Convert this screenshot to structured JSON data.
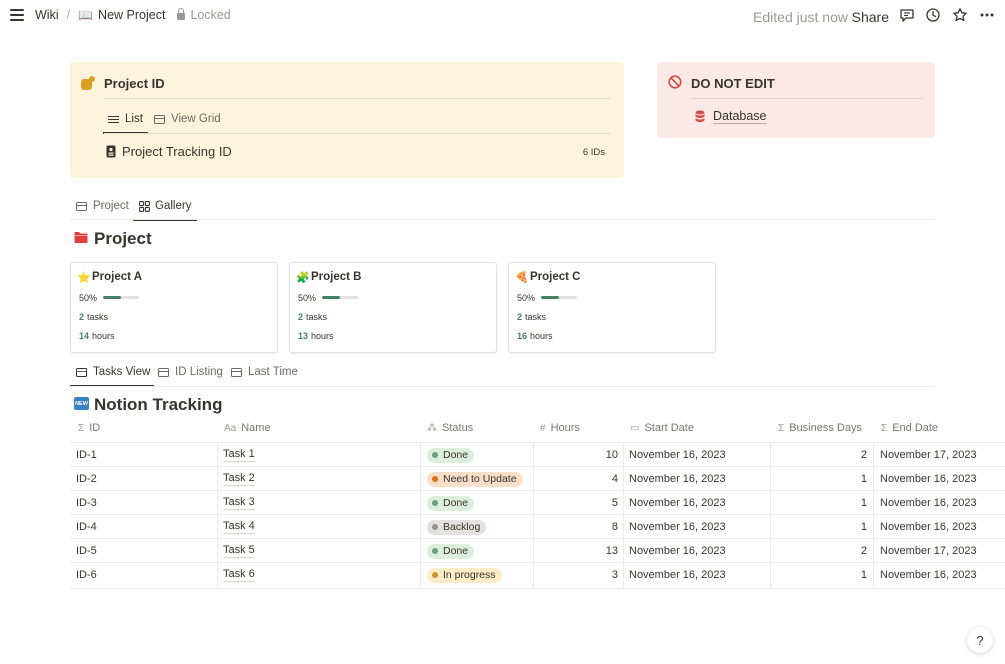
{
  "topbar": {
    "breadcrumb": [
      "Wiki",
      "New Project"
    ],
    "separator": "/",
    "locked_label": "Locked",
    "edited_label": "Edited just now",
    "share_label": "Share",
    "icons": [
      "comment-icon",
      "history-icon",
      "star-icon",
      "more-icon"
    ]
  },
  "callout_project": {
    "title": "Project ID",
    "tabs": [
      {
        "label": "List",
        "active": true
      },
      {
        "label": "View Grid",
        "active": false
      }
    ],
    "item_label": "Project Tracking ID",
    "item_count": "6 IDs"
  },
  "callout_warning": {
    "title": "DO NOT EDIT",
    "link_label": "Database"
  },
  "project_tabs": [
    {
      "label": "Project",
      "active": false
    },
    {
      "label": "Gallery",
      "active": true
    }
  ],
  "project_heading": "Project",
  "projects": [
    {
      "name": "Project A",
      "emoji": "⭐",
      "percent_label": "50%",
      "progress": 0.5,
      "tasks": "2",
      "tasks_label": "tasks",
      "hours": "14",
      "hours_label": "hours"
    },
    {
      "name": "Project B",
      "emoji": "🧩",
      "percent_label": "50%",
      "progress": 0.5,
      "tasks": "2",
      "tasks_label": "tasks",
      "hours": "13",
      "hours_label": "hours"
    },
    {
      "name": "Project C",
      "emoji": "🍕",
      "percent_label": "50%",
      "progress": 0.5,
      "tasks": "2",
      "tasks_label": "tasks",
      "hours": "16",
      "hours_label": "hours"
    }
  ],
  "task_tabs": [
    {
      "label": "Tasks View",
      "active": true
    },
    {
      "label": "ID Listing",
      "active": false
    },
    {
      "label": "Last Time",
      "active": false
    }
  ],
  "tracking_heading": "Notion Tracking",
  "table": {
    "columns": [
      {
        "label": "ID",
        "icon": "Σ"
      },
      {
        "label": "Name",
        "icon": "Aa"
      },
      {
        "label": "Status",
        "icon": "⁂"
      },
      {
        "label": "Hours",
        "icon": "#"
      },
      {
        "label": "Start Date",
        "icon": "▭"
      },
      {
        "label": "Business Days",
        "icon": "Σ"
      },
      {
        "label": "End Date",
        "icon": "Σ"
      }
    ],
    "rows": [
      {
        "id": "ID-1",
        "name": "Task 1",
        "status": "Done",
        "hours": "10",
        "start": "November 16, 2023",
        "bdays": "2",
        "end": "November 17, 2023"
      },
      {
        "id": "ID-2",
        "name": "Task 2",
        "status": "Need to Update",
        "hours": "4",
        "start": "November 16, 2023",
        "bdays": "1",
        "end": "November 16, 2023"
      },
      {
        "id": "ID-3",
        "name": "Task 3",
        "status": "Done",
        "hours": "5",
        "start": "November 16, 2023",
        "bdays": "1",
        "end": "November 16, 2023"
      },
      {
        "id": "ID-4",
        "name": "Task 4",
        "status": "Backlog",
        "hours": "8",
        "start": "November 16, 2023",
        "bdays": "1",
        "end": "November 16, 2023"
      },
      {
        "id": "ID-5",
        "name": "Task 5",
        "status": "Done",
        "hours": "13",
        "start": "November 16, 2023",
        "bdays": "2",
        "end": "November 17, 2023"
      },
      {
        "id": "ID-6",
        "name": "Task 6",
        "status": "In progress",
        "hours": "3",
        "start": "November 16, 2023",
        "bdays": "1",
        "end": "November 16, 2023"
      }
    ]
  },
  "status_colors": {
    "Done": {
      "bg": "#dbeddb",
      "dot": "#6c9b7d"
    },
    "Need to Update": {
      "bg": "#fadec9",
      "dot": "#d9730d"
    },
    "Backlog": {
      "bg": "#e3e2e0",
      "dot": "#91918e"
    },
    "In progress": {
      "bg": "#fdecc8",
      "dot": "#cb912f"
    }
  },
  "help_label": "?"
}
